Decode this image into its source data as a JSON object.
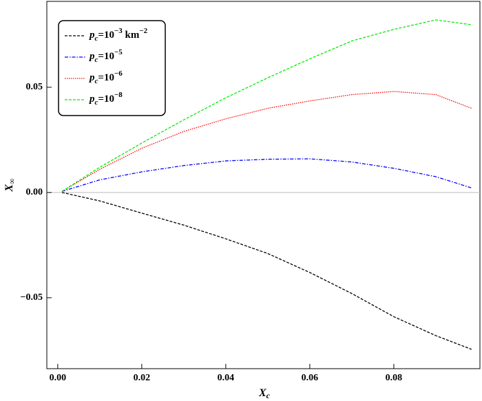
{
  "chart_data": {
    "type": "line",
    "xlabel": "Xc",
    "ylabel": "X∞",
    "x": [
      0.001,
      0.01,
      0.02,
      0.03,
      0.04,
      0.05,
      0.06,
      0.07,
      0.08,
      0.09,
      0.0985
    ],
    "series": [
      {
        "name": "pc=10−3 km−2",
        "color": "#000000",
        "style": "dashed",
        "values": [
          0,
          -0.004,
          -0.0098,
          -0.0155,
          -0.022,
          -0.029,
          -0.038,
          -0.048,
          -0.059,
          -0.068,
          -0.0745
        ]
      },
      {
        "name": "pc=10−5",
        "color": "#0000ff",
        "style": "dashdot",
        "values": [
          0.0005,
          0.006,
          0.0098,
          0.0128,
          0.015,
          0.0158,
          0.016,
          0.0145,
          0.0115,
          0.0075,
          0.0022
        ]
      },
      {
        "name": "pc=10−6",
        "color": "#ff0000",
        "style": "dotted",
        "values": [
          0.0005,
          0.011,
          0.021,
          0.029,
          0.035,
          0.04,
          0.0435,
          0.0465,
          0.048,
          0.0465,
          0.04
        ]
      },
      {
        "name": "pc=10−8",
        "color": "#00ee00",
        "style": "dashed",
        "values": [
          0.0005,
          0.012,
          0.0235,
          0.0345,
          0.045,
          0.0545,
          0.0635,
          0.072,
          0.0775,
          0.082,
          0.0797
        ]
      }
    ],
    "xlim": [
      -0.0026,
      0.1005
    ],
    "ylim": [
      -0.0837,
      0.0908
    ],
    "xticks": [
      {
        "value": 0,
        "label": "0.00"
      },
      {
        "value": 0.02,
        "label": "0.02"
      },
      {
        "value": 0.04,
        "label": "0.04"
      },
      {
        "value": 0.06,
        "label": "0.06"
      },
      {
        "value": 0.08,
        "label": "0.08"
      }
    ],
    "yticks": [
      {
        "value": -0.05,
        "label": "−0.05"
      },
      {
        "value": 0,
        "label": "0.00"
      },
      {
        "value": 0.05,
        "label": "0.05"
      }
    ],
    "zero_line": true,
    "legend": "upper left"
  }
}
